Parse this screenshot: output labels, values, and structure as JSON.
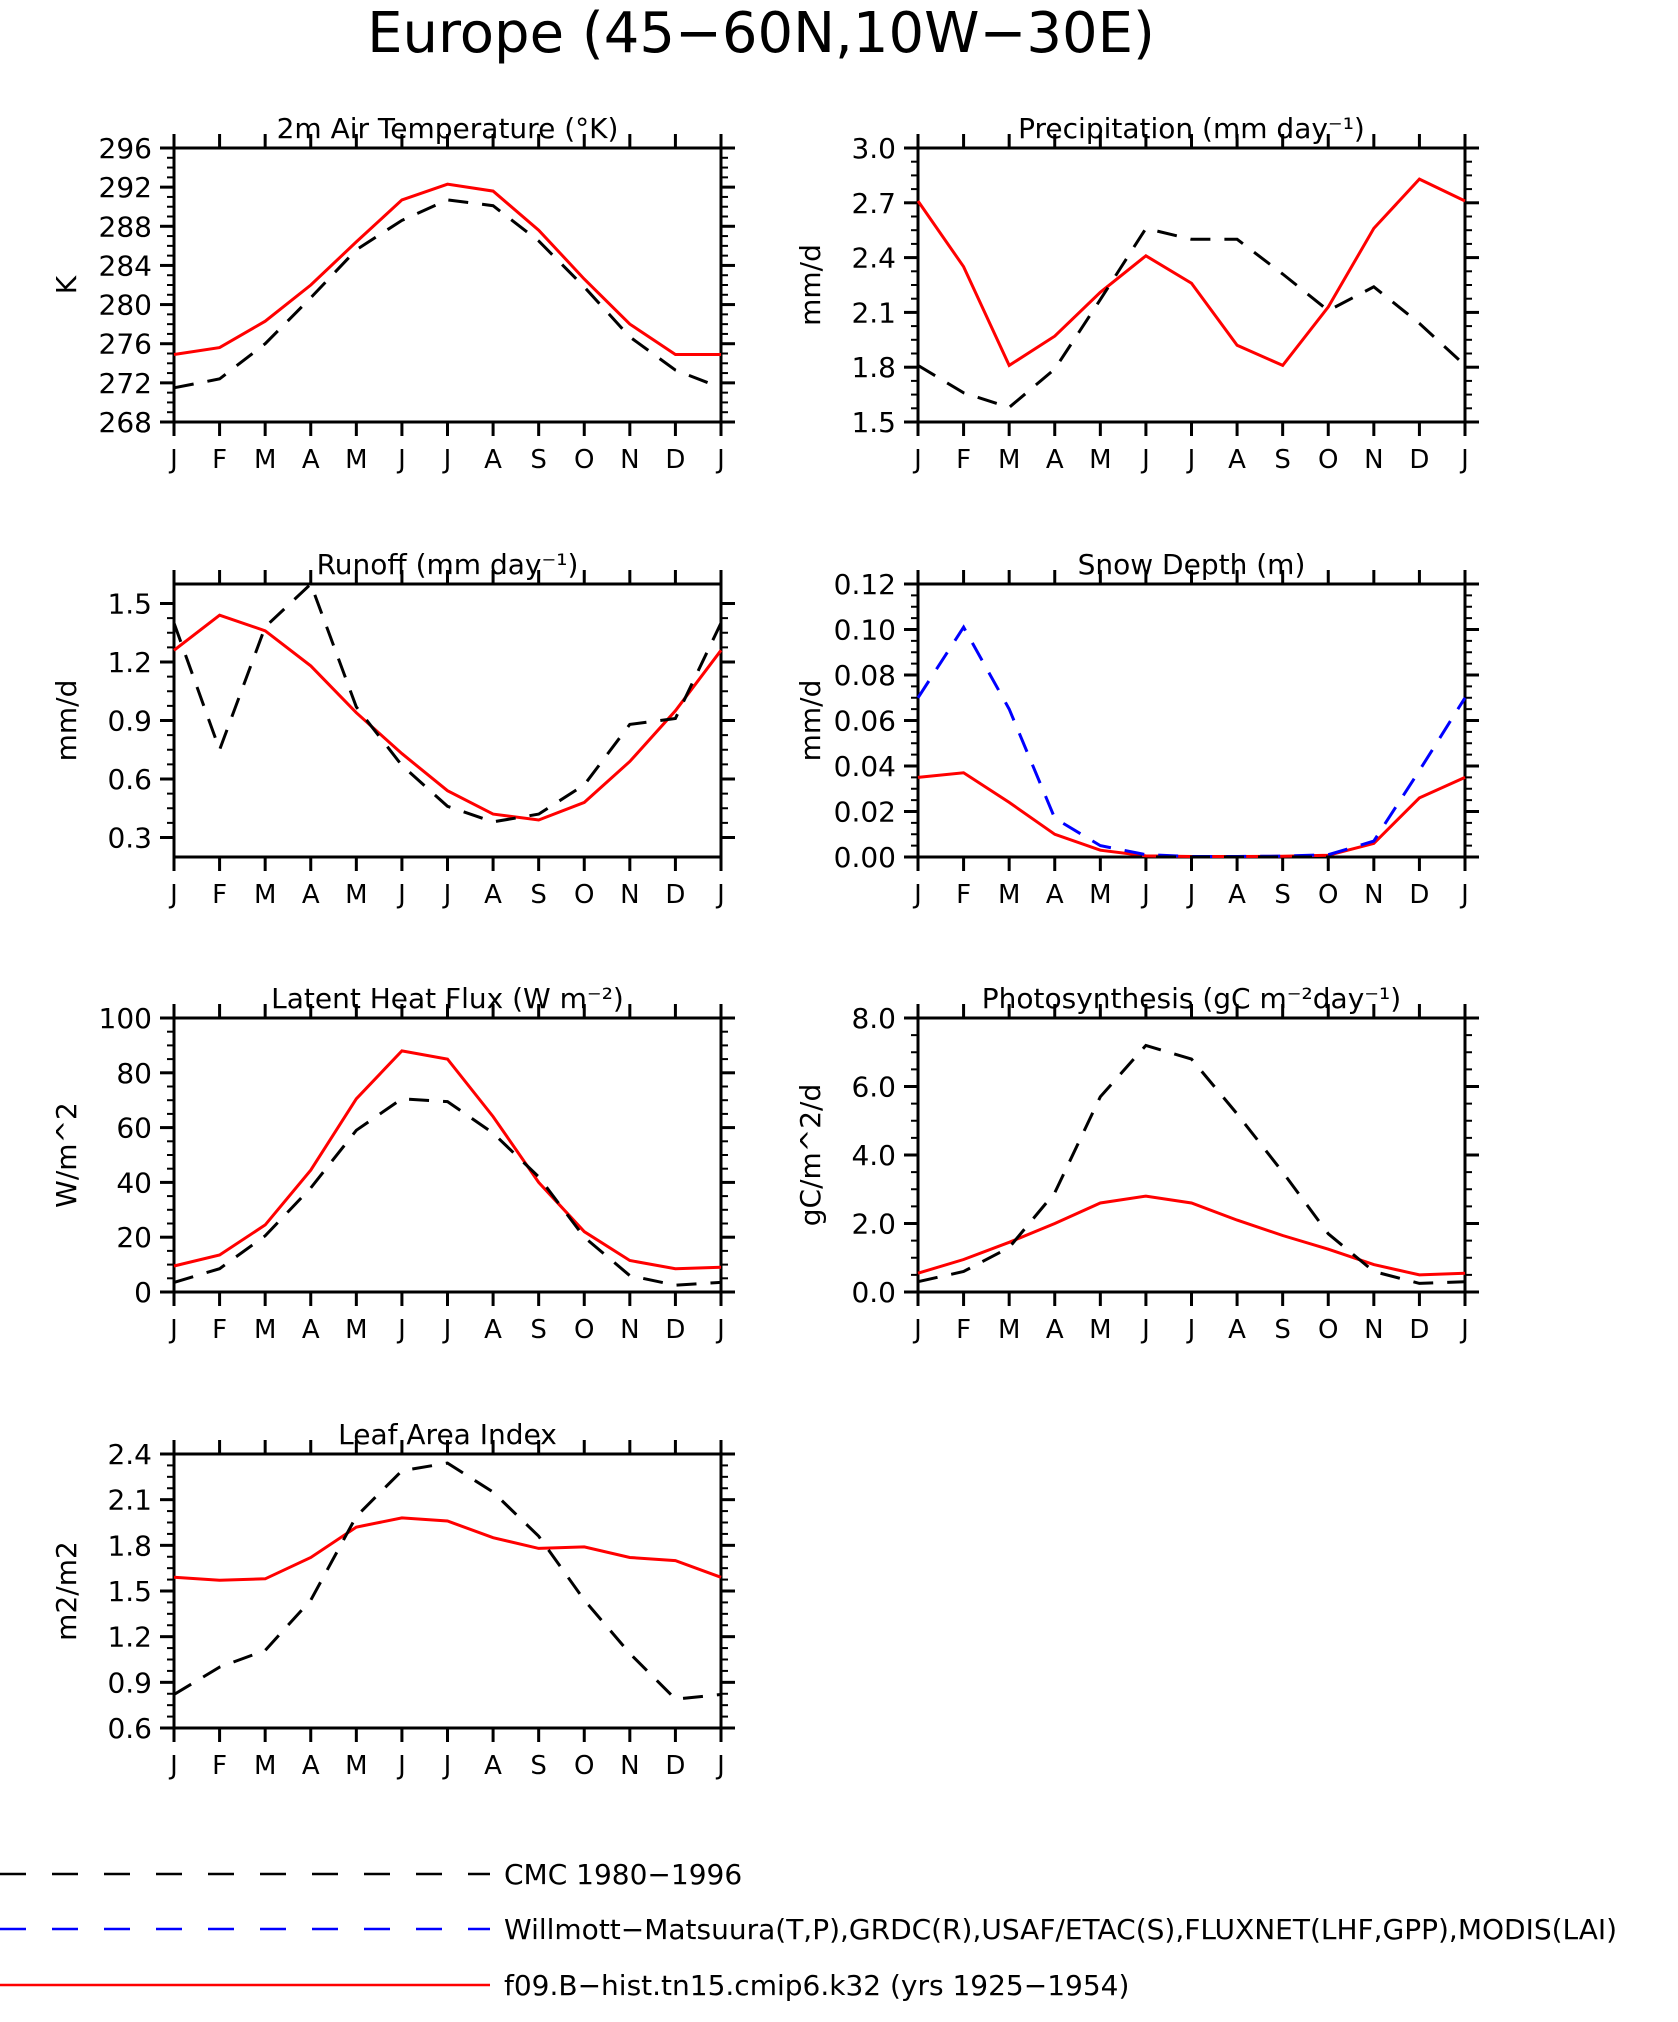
{
  "figure_title": "Europe (45−60N,10W−30E)",
  "months": [
    "J",
    "F",
    "M",
    "A",
    "M",
    "J",
    "J",
    "A",
    "S",
    "O",
    "N",
    "D",
    "J"
  ],
  "legend": [
    {
      "label": "CMC 1980−1996",
      "color": "#000000",
      "dash": true
    },
    {
      "label": "Willmott−Matsuura(T,P),GRDC(R),USAF/ETAC(S),FLUXNET(LHF,GPP),MODIS(LAI)",
      "color": "#0000ff",
      "dash": true
    },
    {
      "label": "f09.B−hist.tn15.cmip6.k32 (yrs 1925−1954)",
      "color": "#ff0000",
      "dash": false
    }
  ],
  "colors": {
    "model": "#ff0000",
    "obs": "#000000",
    "obs_blue": "#0000ff"
  },
  "chart_data": [
    {
      "type": "line",
      "title": "2m Air Temperature (°K)",
      "ylabel": "K",
      "ylim": [
        268,
        296
      ],
      "yticks": [
        "268",
        "272",
        "276",
        "280",
        "284",
        "288",
        "292",
        "296"
      ],
      "series": [
        {
          "color": "#ff0000",
          "dash": false,
          "values": [
            274.9,
            275.6,
            278.3,
            282.0,
            286.4,
            290.7,
            292.3,
            291.6,
            287.6,
            282.6,
            278.0,
            274.9,
            274.9
          ]
        },
        {
          "color": "#000000",
          "dash": true,
          "values": [
            271.5,
            272.4,
            276.0,
            280.7,
            285.6,
            288.6,
            290.7,
            290.1,
            286.5,
            281.8,
            276.7,
            273.3,
            271.5
          ]
        }
      ]
    },
    {
      "type": "line",
      "title": "Precipitation (mm day⁻¹)",
      "ylabel": "mm/d",
      "ylim": [
        1.5,
        3.0
      ],
      "yticks": [
        "1.5",
        "1.8",
        "2.1",
        "2.4",
        "2.7",
        "3.0"
      ],
      "series": [
        {
          "color": "#ff0000",
          "dash": false,
          "values": [
            2.71,
            2.35,
            1.81,
            1.97,
            2.21,
            2.41,
            2.26,
            1.92,
            1.81,
            2.13,
            2.56,
            2.83,
            2.71
          ]
        },
        {
          "color": "#000000",
          "dash": true,
          "values": [
            1.81,
            1.66,
            1.58,
            1.79,
            2.17,
            2.56,
            2.5,
            2.5,
            2.31,
            2.11,
            2.24,
            2.04,
            1.81
          ]
        }
      ]
    },
    {
      "type": "line",
      "title": "Runoff (mm day⁻¹)",
      "ylabel": "mm/d",
      "ylim": [
        0.2,
        1.6
      ],
      "yticks": [
        "0.3",
        "0.6",
        "0.9",
        "1.2",
        "1.5"
      ],
      "series": [
        {
          "color": "#ff0000",
          "dash": false,
          "values": [
            1.26,
            1.44,
            1.36,
            1.18,
            0.94,
            0.73,
            0.54,
            0.42,
            0.39,
            0.48,
            0.69,
            0.95,
            1.26
          ]
        },
        {
          "color": "#000000",
          "dash": true,
          "values": [
            1.4,
            0.75,
            1.38,
            1.6,
            0.97,
            0.67,
            0.46,
            0.38,
            0.42,
            0.57,
            0.88,
            0.91,
            1.4
          ]
        }
      ]
    },
    {
      "type": "line",
      "title": "Snow Depth (m)",
      "ylabel": "mm/d",
      "ylim": [
        0.0,
        0.12
      ],
      "yticks": [
        "0.00",
        "0.02",
        "0.04",
        "0.06",
        "0.08",
        "0.10",
        "0.12"
      ],
      "series": [
        {
          "color": "#ff0000",
          "dash": false,
          "values": [
            0.035,
            0.037,
            0.024,
            0.01,
            0.003,
            0.0005,
            0.0002,
            0.0002,
            0.0003,
            0.0008,
            0.006,
            0.026,
            0.035
          ]
        },
        {
          "color": "#0000ff",
          "dash": true,
          "values": [
            0.07,
            0.101,
            0.065,
            0.017,
            0.005,
            0.001,
            0.0002,
            0.0002,
            0.0004,
            0.001,
            0.007,
            0.038,
            0.07
          ]
        },
        {
          "color": "#000000",
          "dash": true,
          "values": [
            0,
            0,
            0,
            0,
            0,
            0,
            0,
            0,
            0,
            0,
            0,
            0,
            0
          ]
        }
      ]
    },
    {
      "type": "line",
      "title": "Latent Heat Flux (W m⁻²)",
      "ylabel": "W/m^2",
      "ylim": [
        0,
        100
      ],
      "yticks": [
        "0",
        "20",
        "40",
        "60",
        "80",
        "100"
      ],
      "series": [
        {
          "color": "#ff0000",
          "dash": false,
          "values": [
            9.5,
            13.5,
            24.5,
            44.5,
            70.5,
            88.0,
            85.0,
            64.0,
            40.0,
            22.0,
            11.5,
            8.5,
            9.0
          ]
        },
        {
          "color": "#000000",
          "dash": true,
          "values": [
            3.5,
            8.5,
            20.5,
            38.0,
            59.0,
            70.5,
            69.5,
            58.0,
            42.0,
            20.0,
            6.0,
            2.5,
            3.5
          ]
        }
      ]
    },
    {
      "type": "line",
      "title": "Photosynthesis (gC m⁻²day⁻¹)",
      "ylabel": "gC/m^2/d",
      "ylim": [
        0.0,
        8.0
      ],
      "yticks": [
        "0.0",
        "2.0",
        "4.0",
        "6.0",
        "8.0"
      ],
      "series": [
        {
          "color": "#ff0000",
          "dash": false,
          "values": [
            0.55,
            0.95,
            1.45,
            2.0,
            2.6,
            2.8,
            2.6,
            2.1,
            1.65,
            1.25,
            0.8,
            0.5,
            0.55
          ]
        },
        {
          "color": "#000000",
          "dash": true,
          "values": [
            0.3,
            0.6,
            1.3,
            2.9,
            5.7,
            7.2,
            6.8,
            5.2,
            3.5,
            1.7,
            0.6,
            0.25,
            0.3
          ]
        }
      ]
    },
    {
      "type": "line",
      "title": "Leaf Area Index",
      "ylabel": "m2/m2",
      "ylim": [
        0.6,
        2.4
      ],
      "yticks": [
        "0.6",
        "0.9",
        "1.2",
        "1.5",
        "1.8",
        "2.1",
        "2.4"
      ],
      "series": [
        {
          "color": "#ff0000",
          "dash": false,
          "values": [
            1.59,
            1.57,
            1.58,
            1.72,
            1.92,
            1.98,
            1.96,
            1.85,
            1.78,
            1.79,
            1.72,
            1.7,
            1.59
          ]
        },
        {
          "color": "#000000",
          "dash": true,
          "values": [
            0.82,
            1.0,
            1.11,
            1.44,
            1.99,
            2.29,
            2.34,
            2.15,
            1.86,
            1.44,
            1.09,
            0.79,
            0.82
          ]
        }
      ]
    }
  ]
}
